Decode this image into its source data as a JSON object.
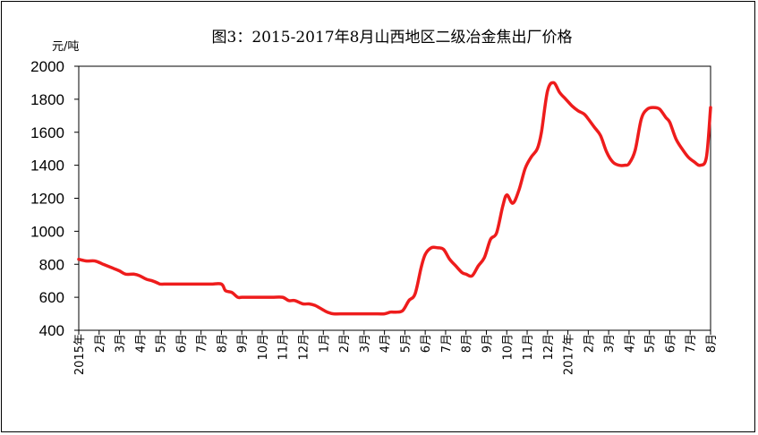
{
  "chart_data": {
    "type": "line",
    "title": "图3：2015-2017年8月山西地区二级冶金焦出厂价格",
    "ylabel": "元/吨",
    "ylim": [
      400,
      2000
    ],
    "yticks": [
      400,
      600,
      800,
      1000,
      1200,
      1400,
      1600,
      1800,
      2000
    ],
    "grid": false,
    "legend": "none",
    "line_color": "#ee1c1c",
    "x_tick_labels": [
      "2015年",
      "2月",
      "3月",
      "4月",
      "5月",
      "6月",
      "7月",
      "8月",
      "9月",
      "10月",
      "11月",
      "12月",
      "1月",
      "2月",
      "3月",
      "4月",
      "5月",
      "6月",
      "7月",
      "8月",
      "9月",
      "10月",
      "11月",
      "12月",
      "2017年",
      "2月",
      "3月",
      "4月",
      "5月",
      "6月",
      "7月",
      "8月"
    ],
    "series": [
      {
        "x": [
          0,
          0.4,
          0.8,
          1.2,
          1.6,
          2.0,
          2.3,
          2.7,
          3.0,
          3.3,
          3.6,
          3.9,
          4.0,
          4.3,
          4.6,
          5.0,
          5.5,
          6.0,
          6.5,
          7.0,
          7.2,
          7.5,
          7.8,
          8.0,
          8.5,
          9.0,
          9.5,
          10.0,
          10.3,
          10.6,
          11.0,
          11.3,
          11.6,
          11.9,
          12.2,
          12.5,
          13.0,
          13.5,
          14.0,
          14.5,
          15.0,
          15.3,
          15.6,
          15.9,
          16.2,
          16.5,
          16.8,
          17.0,
          17.3,
          17.6,
          17.9,
          18.2,
          18.5,
          18.8,
          19.0,
          19.3,
          19.6,
          19.9,
          20.2,
          20.5,
          20.8,
          21.0,
          21.3,
          21.6,
          21.9,
          22.2,
          22.5,
          22.7,
          23.0,
          23.3,
          23.6,
          23.9,
          24.2,
          24.5,
          24.8,
          25.0,
          25.3,
          25.6,
          25.9,
          26.2,
          26.5,
          26.8,
          27.0,
          27.3,
          27.6,
          27.9,
          28.2,
          28.5,
          28.8,
          29.0,
          29.3,
          29.6,
          29.9,
          30.2,
          30.5,
          30.8,
          31.0
        ],
        "y": [
          830,
          820,
          820,
          800,
          780,
          760,
          740,
          740,
          730,
          710,
          700,
          685,
          680,
          680,
          680,
          680,
          680,
          680,
          680,
          680,
          640,
          630,
          600,
          600,
          600,
          600,
          600,
          600,
          580,
          580,
          560,
          560,
          550,
          530,
          510,
          500,
          500,
          500,
          500,
          500,
          500,
          510,
          510,
          520,
          580,
          620,
          780,
          860,
          900,
          900,
          890,
          830,
          790,
          750,
          740,
          730,
          790,
          840,
          950,
          990,
          1150,
          1220,
          1170,
          1250,
          1380,
          1450,
          1500,
          1600,
          1850,
          1900,
          1840,
          1800,
          1760,
          1730,
          1710,
          1680,
          1630,
          1580,
          1480,
          1420,
          1400,
          1400,
          1410,
          1490,
          1680,
          1740,
          1750,
          1740,
          1690,
          1660,
          1560,
          1500,
          1450,
          1420,
          1400,
          1450,
          1750
        ]
      }
    ]
  }
}
